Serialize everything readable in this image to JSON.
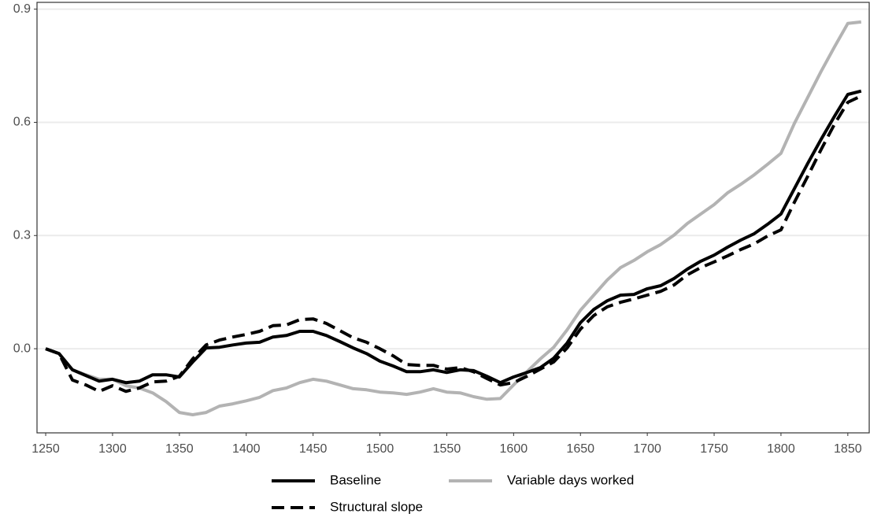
{
  "chart_data": {
    "type": "line",
    "x": [
      1250,
      1260,
      1270,
      1280,
      1290,
      1300,
      1310,
      1320,
      1330,
      1340,
      1350,
      1360,
      1370,
      1380,
      1390,
      1400,
      1410,
      1420,
      1430,
      1440,
      1450,
      1460,
      1470,
      1480,
      1490,
      1500,
      1510,
      1520,
      1530,
      1540,
      1550,
      1560,
      1570,
      1580,
      1590,
      1600,
      1610,
      1620,
      1630,
      1640,
      1650,
      1660,
      1670,
      1680,
      1690,
      1700,
      1710,
      1720,
      1730,
      1740,
      1750,
      1760,
      1770,
      1780,
      1790,
      1800,
      1810,
      1820,
      1830,
      1840,
      1850,
      1860
    ],
    "series": [
      {
        "name": "Baseline",
        "color": "#000000",
        "linestyle": "solid",
        "values": [
          0,
          -0.013,
          -0.056,
          -0.071,
          -0.086,
          -0.081,
          -0.09,
          -0.086,
          -0.069,
          -0.069,
          -0.075,
          -0.035,
          0.002,
          0.004,
          0.01,
          0.015,
          0.017,
          0.031,
          0.035,
          0.046,
          0.046,
          0.035,
          0.019,
          0.002,
          -0.013,
          -0.033,
          -0.046,
          -0.061,
          -0.061,
          -0.056,
          -0.063,
          -0.056,
          -0.058,
          -0.073,
          -0.09,
          -0.075,
          -0.063,
          -0.05,
          -0.025,
          0.015,
          0.069,
          0.104,
          0.127,
          0.142,
          0.144,
          0.159,
          0.167,
          0.186,
          0.211,
          0.232,
          0.248,
          0.269,
          0.288,
          0.305,
          0.33,
          0.357,
          0.424,
          0.491,
          0.555,
          0.616,
          0.674,
          0.683
        ]
      },
      {
        "name": "Variable days worked",
        "color": "#b3b3b3",
        "linestyle": "solid",
        "values": [
          0,
          -0.013,
          -0.056,
          -0.069,
          -0.081,
          -0.081,
          -0.098,
          -0.104,
          -0.117,
          -0.14,
          -0.169,
          -0.175,
          -0.169,
          -0.152,
          -0.146,
          -0.138,
          -0.129,
          -0.111,
          -0.104,
          -0.09,
          -0.081,
          -0.086,
          -0.096,
          -0.106,
          -0.109,
          -0.115,
          -0.117,
          -0.121,
          -0.115,
          -0.106,
          -0.115,
          -0.117,
          -0.127,
          -0.134,
          -0.132,
          -0.096,
          -0.061,
          -0.027,
          0.004,
          0.05,
          0.102,
          0.142,
          0.182,
          0.215,
          0.234,
          0.257,
          0.276,
          0.301,
          0.332,
          0.357,
          0.382,
          0.413,
          0.436,
          0.461,
          0.489,
          0.518,
          0.597,
          0.666,
          0.735,
          0.8,
          0.862,
          0.866
        ]
      },
      {
        "name": "Structural slope",
        "color": "#000000",
        "linestyle": "dashed",
        "values": [
          0,
          -0.013,
          -0.083,
          -0.096,
          -0.113,
          -0.098,
          -0.113,
          -0.104,
          -0.088,
          -0.086,
          -0.073,
          -0.027,
          0.01,
          0.023,
          0.031,
          0.038,
          0.046,
          0.061,
          0.063,
          0.077,
          0.079,
          0.067,
          0.048,
          0.029,
          0.017,
          0,
          -0.019,
          -0.042,
          -0.044,
          -0.044,
          -0.054,
          -0.05,
          -0.061,
          -0.079,
          -0.096,
          -0.09,
          -0.073,
          -0.054,
          -0.035,
          0.002,
          0.052,
          0.088,
          0.111,
          0.123,
          0.132,
          0.142,
          0.152,
          0.169,
          0.196,
          0.215,
          0.23,
          0.246,
          0.263,
          0.278,
          0.299,
          0.315,
          0.388,
          0.457,
          0.528,
          0.595,
          0.653,
          0.67
        ]
      }
    ],
    "xlim": [
      1243.5,
      1866
    ],
    "ylim": [
      -0.223,
      0.918
    ],
    "xticks": [
      1250,
      1300,
      1350,
      1400,
      1450,
      1500,
      1550,
      1600,
      1650,
      1700,
      1750,
      1800,
      1850
    ],
    "yticks": [
      {
        "value": 0,
        "label": "0.0"
      },
      0.3,
      0.6,
      0.9
    ],
    "grid": true,
    "legend": "bottom"
  }
}
